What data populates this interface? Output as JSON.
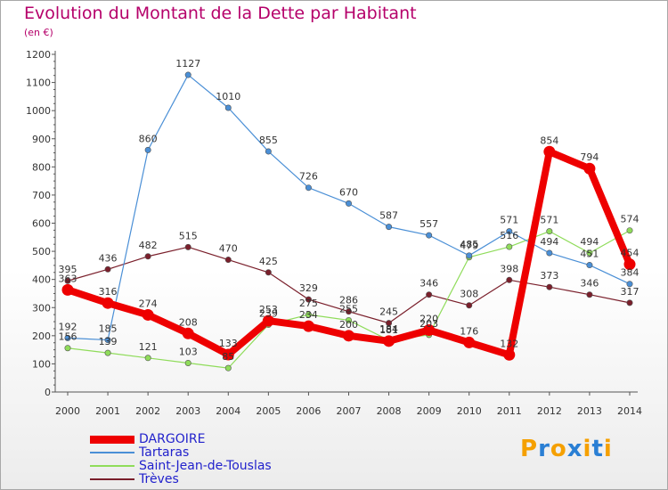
{
  "chart_title": "Evolution du Montant de la Dette par Habitant",
  "chart_unit": "(en €)",
  "logo": {
    "letters": [
      "P",
      "r",
      "o",
      "x",
      "i",
      "t",
      "i"
    ],
    "colors": [
      "#f5a000",
      "#2a7fd4",
      "#f5a000",
      "#2a7fd4",
      "#f5a000",
      "#2a7fd4",
      "#f5a000"
    ]
  },
  "chart_data": {
    "type": "line",
    "title": "Evolution du Montant de la Dette par Habitant",
    "subtitle": "(en €)",
    "xlabel": "",
    "ylabel": "",
    "x": [
      "2000",
      "2001",
      "2002",
      "2003",
      "2004",
      "2005",
      "2006",
      "2007",
      "2008",
      "2009",
      "2010",
      "2011",
      "2012",
      "2013",
      "2014"
    ],
    "ylim": [
      0,
      1200
    ],
    "yticks": [
      0,
      100,
      200,
      300,
      400,
      500,
      600,
      700,
      800,
      900,
      1000,
      1100,
      1200
    ],
    "grid": false,
    "legend_position": "bottom-left",
    "series": [
      {
        "name": "Trèves",
        "color": "#7a1f2b",
        "values": [
          395,
          436,
          482,
          515,
          470,
          425,
          329,
          286,
          245,
          346,
          308,
          398,
          373,
          346,
          317
        ]
      },
      {
        "name": "Saint-Jean-de-Touslas",
        "color": "#8fdc5a",
        "values": [
          156,
          139,
          121,
          103,
          85,
          239,
          275,
          255,
          184,
          203,
          479,
          516,
          571,
          494,
          574
        ]
      },
      {
        "name": "Tartaras",
        "color": "#4a8fd6",
        "values": [
          192,
          185,
          860,
          1127,
          1010,
          855,
          726,
          670,
          587,
          557,
          485,
          571,
          494,
          451,
          384
        ]
      },
      {
        "name": "DARGOIRE",
        "color": "#ee0000",
        "values": [
          363,
          316,
          274,
          208,
          133,
          253,
          234,
          200,
          181,
          220,
          176,
          132,
          854,
          794,
          454
        ]
      }
    ]
  }
}
